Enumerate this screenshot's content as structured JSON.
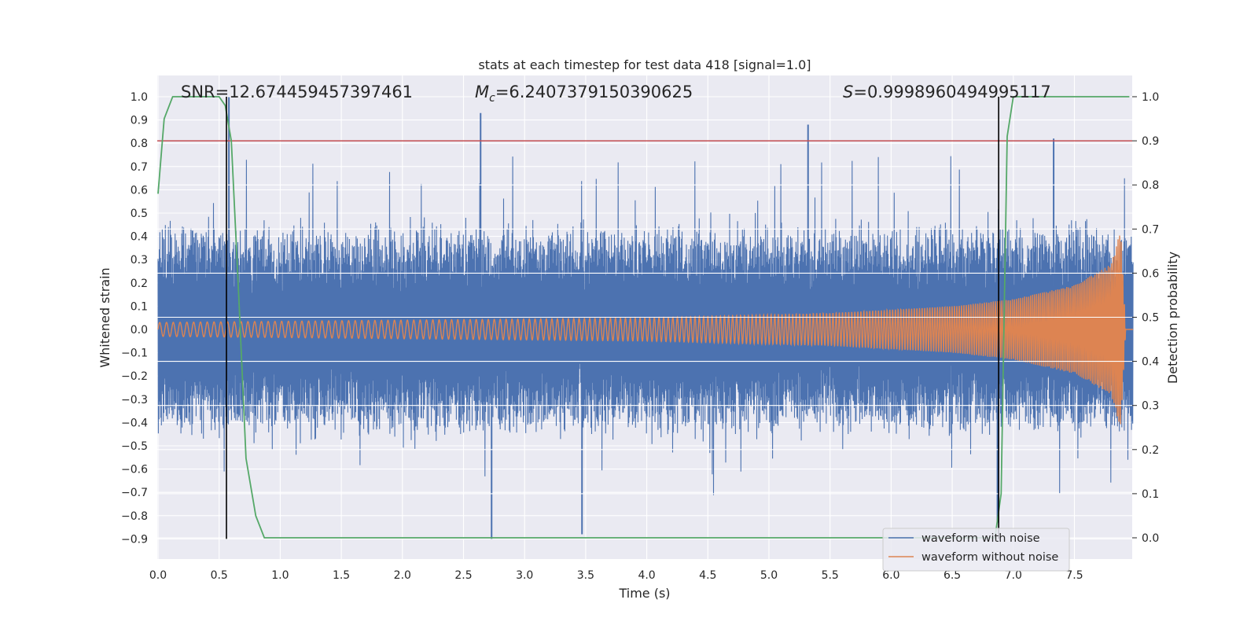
{
  "chart_data": {
    "type": "line",
    "title": "stats at each timestep for test data 418 [signal=1.0]",
    "xlabel": "Time (s)",
    "ylabel": "Whitened strain",
    "y2label": "Detection probability",
    "xlim": [
      0.0,
      8.0
    ],
    "ylim": [
      -0.99,
      1.09
    ],
    "y2lim": [
      -0.05,
      1.04
    ],
    "xticks": [
      0.0,
      0.5,
      1.0,
      1.5,
      2.0,
      2.5,
      3.0,
      3.5,
      4.0,
      4.5,
      5.0,
      5.5,
      6.0,
      6.5,
      7.0,
      7.5
    ],
    "xtick_labels": [
      "0.0",
      "0.5",
      "1.0",
      "1.5",
      "2.0",
      "2.5",
      "3.0",
      "3.5",
      "4.0",
      "4.5",
      "5.0",
      "5.5",
      "6.0",
      "6.5",
      "7.0",
      "7.5"
    ],
    "yticks": [
      1.0,
      0.9,
      0.8,
      0.7,
      0.6,
      0.5,
      0.4,
      0.3,
      0.2,
      0.1,
      0.0,
      -0.1,
      -0.2,
      -0.3,
      -0.4,
      -0.5,
      -0.6,
      -0.7,
      -0.8,
      -0.9
    ],
    "ytick_labels": [
      "1.0",
      "0.9",
      "0.8",
      "0.7",
      "0.6",
      "0.5",
      "0.4",
      "0.3",
      "0.2",
      "0.1",
      "0.0",
      "−0.1",
      "−0.2",
      "−0.3",
      "−0.4",
      "−0.5",
      "−0.6",
      "−0.7",
      "−0.8",
      "−0.9"
    ],
    "y2ticks": [
      1.0,
      0.9,
      0.8,
      0.7,
      0.6,
      0.5,
      0.4,
      0.3,
      0.2,
      0.1,
      0.0
    ],
    "y2tick_labels": [
      "1.0",
      "0.9",
      "0.8",
      "0.7",
      "0.6",
      "0.5",
      "0.4",
      "0.3",
      "0.2",
      "0.1",
      "0.0"
    ],
    "grid": true,
    "legend_position": "bottom-right",
    "series": [
      {
        "name": "waveform with noise",
        "color": "#4c72b0",
        "axis": "left",
        "envelope_description": "dense noisy strain, typical range -0.45 to 0.45, spikes up to 1.0 and down to -0.9",
        "typical_amplitude": 0.42,
        "notable_peaks": [
          [
            0.58,
            1.0
          ],
          [
            2.64,
            0.93
          ],
          [
            5.32,
            0.88
          ],
          [
            7.33,
            0.82
          ],
          [
            2.73,
            -0.9
          ],
          [
            3.47,
            -0.88
          ],
          [
            6.87,
            -0.83
          ]
        ]
      },
      {
        "name": "waveform without noise",
        "color": "#dd8452",
        "axis": "left",
        "description": "chirp signal: amplitude grows from ~0.03 to ~0.43 near t=7.9s, then drops to 0",
        "amplitude_points": [
          [
            0.0,
            0.03
          ],
          [
            2.0,
            0.04
          ],
          [
            4.0,
            0.05
          ],
          [
            5.5,
            0.07
          ],
          [
            6.5,
            0.1
          ],
          [
            7.0,
            0.13
          ],
          [
            7.5,
            0.19
          ],
          [
            7.8,
            0.28
          ],
          [
            7.88,
            0.43
          ],
          [
            7.92,
            0.0
          ]
        ]
      },
      {
        "name": "detection probability",
        "color": "#55a868",
        "axis": "right",
        "x": [
          0.0,
          0.05,
          0.12,
          0.25,
          0.4,
          0.5,
          0.55,
          0.6,
          0.66,
          0.72,
          0.8,
          0.87,
          1.0,
          1.5,
          2.0,
          3.0,
          4.0,
          5.0,
          6.0,
          6.5,
          6.85,
          6.9,
          6.95,
          7.0,
          7.5,
          7.95
        ],
        "y": [
          0.78,
          0.95,
          1.0,
          1.0,
          1.0,
          1.0,
          0.98,
          0.9,
          0.55,
          0.18,
          0.05,
          0.0,
          0.0,
          0.0,
          0.0,
          0.0,
          0.0,
          0.0,
          0.0,
          0.0,
          0.0,
          0.1,
          0.91,
          1.0,
          1.0,
          1.0
        ]
      }
    ],
    "threshold": {
      "value": 0.9,
      "axis": "right",
      "color": "#c44e52"
    },
    "markers": [
      {
        "x": 0.56,
        "color": "#000000"
      },
      {
        "x": 6.88,
        "color": "#000000"
      }
    ],
    "annotations": {
      "snr": "SNR=12.674459457397461",
      "mc_symbol": "M",
      "mc_sub": "c",
      "mc_value": "=6.2407379150390625",
      "s_symbol": "S",
      "s_value": "=0.9998960494995117"
    }
  }
}
